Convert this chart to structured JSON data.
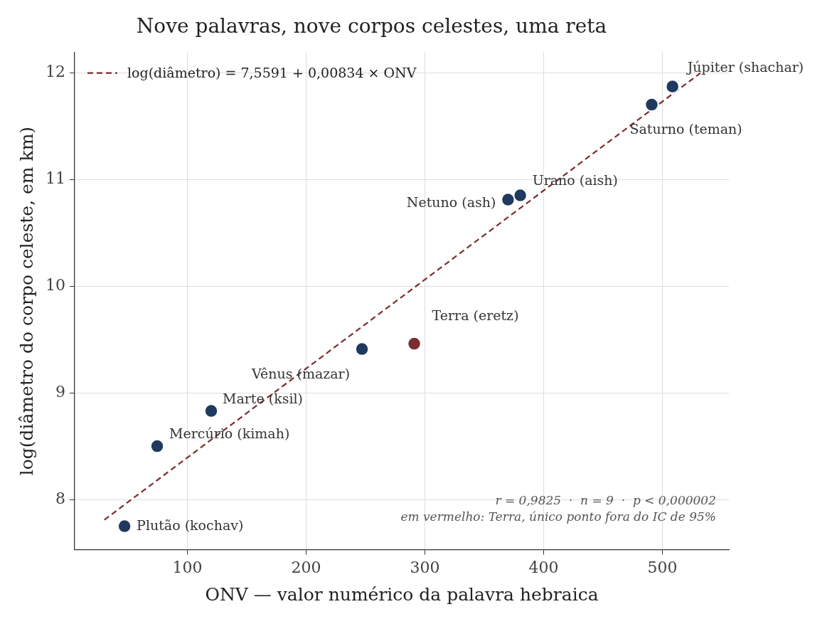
{
  "chart_data": {
    "type": "scatter",
    "title": "Nove palavras, nove corpos celestes, uma reta",
    "xlabel": "ONV — valor numérico da palavra hebraica",
    "ylabel": "log(diâmetro do corpo celeste, em km)",
    "xlim": [
      5,
      556
    ],
    "ylim": [
      7.53,
      12.19
    ],
    "xticks": [
      100,
      200,
      300,
      400,
      500
    ],
    "yticks": [
      8,
      9,
      10,
      11,
      12
    ],
    "grid": true,
    "legend": "top left",
    "marker": "circle",
    "series": [
      {
        "color": "#1f3a5f",
        "x": [
          47,
          74.5,
          120,
          247,
          370,
          380.3,
          491,
          508.5
        ],
        "values": [
          7.75,
          8.5,
          8.83,
          9.41,
          10.81,
          10.85,
          11.7,
          11.87
        ]
      },
      {
        "color": "#7b2d2d",
        "x": [
          291
        ],
        "values": [
          9.46
        ]
      },
      {
        "type": "line",
        "name": "log(diâmetro) = 7,5591 + 0,00834 × ONV",
        "color": "#7b2d2d",
        "line_style": "dashed",
        "marker": "none",
        "x": [
          30,
          532
        ],
        "values": [
          7.81,
          11.996
        ]
      }
    ],
    "annotations": [
      {
        "text": "Plutão (kochav)",
        "x": 47,
        "y": 7.75
      },
      {
        "text": "Mercúrio (kimah)",
        "x": 74.5,
        "y": 8.5
      },
      {
        "text": "Marte (ksil)",
        "x": 120,
        "y": 8.83
      },
      {
        "text": "Vênus (mazar)",
        "x": 247,
        "y": 9.41
      },
      {
        "text": "Terra (eretz)",
        "x": 291,
        "y": 9.46
      },
      {
        "text": "Netuno (ash)",
        "x": 370,
        "y": 10.81
      },
      {
        "text": "Urano (aish)",
        "x": 380.3,
        "y": 10.85
      },
      {
        "text": "Saturno (teman)",
        "x": 491,
        "y": 11.7
      },
      {
        "text": "Júpiter (shachar)",
        "x": 508.5,
        "y": 11.87
      },
      "r = 0,9825  ·  n = 9  ·  p < 0,000002",
      "em vermelho: Terra, único ponto fora do IC de 95%"
    ]
  }
}
